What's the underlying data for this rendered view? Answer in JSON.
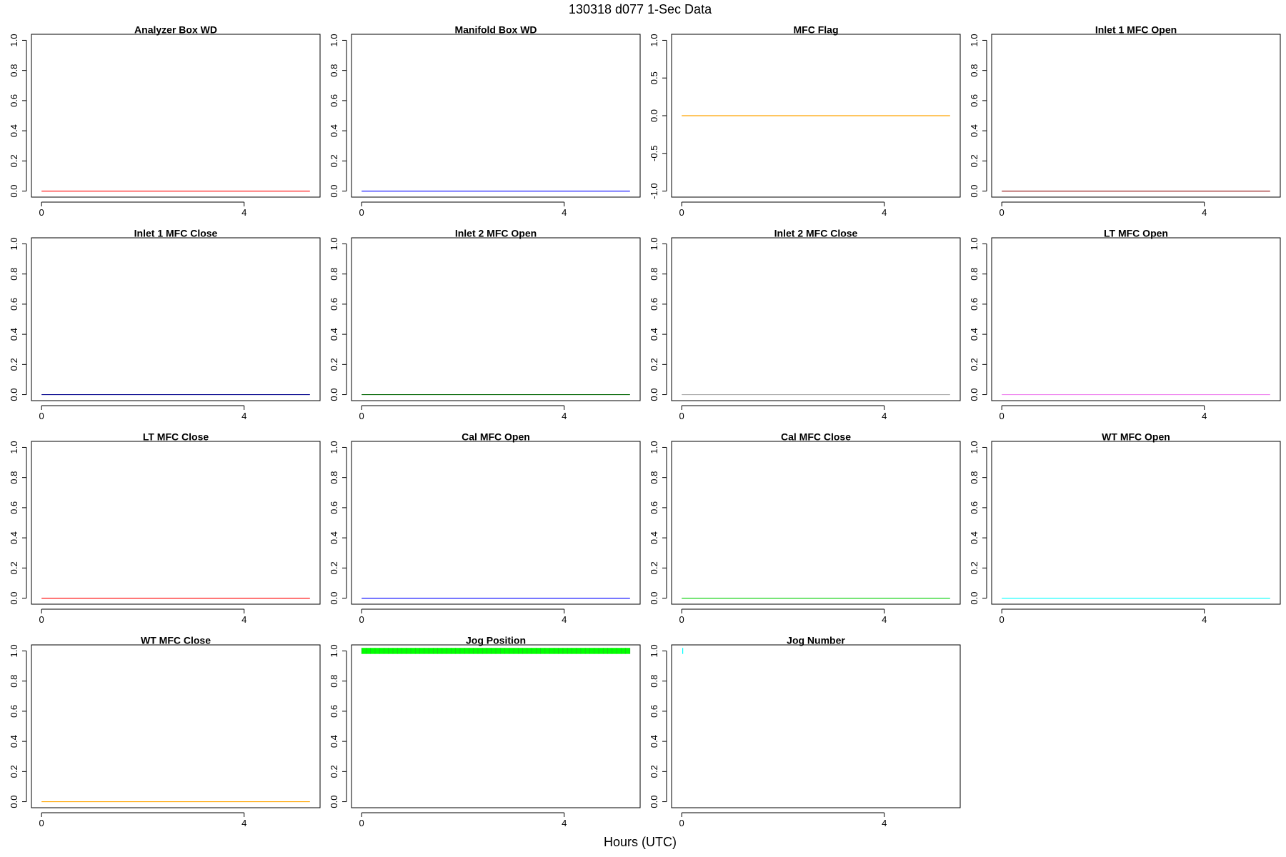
{
  "figure": {
    "title": "130318   d077   1-Sec Data",
    "xlabel": "Hours (UTC)"
  },
  "chart_data": [
    {
      "type": "line",
      "title": "Analyzer Box WD",
      "color": "#ff0000",
      "x": [
        0,
        5.3
      ],
      "y": [
        0,
        0
      ],
      "xlim": [
        -0.2,
        5.5
      ],
      "ylim": [
        -0.04,
        1.04
      ],
      "xticks": [
        0,
        4
      ],
      "yticks": [
        0,
        0.2,
        0.4,
        0.6,
        0.8,
        1
      ]
    },
    {
      "type": "line",
      "title": "Manifold Box WD",
      "color": "#0000ff",
      "x": [
        0,
        5.3
      ],
      "y": [
        0,
        0
      ],
      "xlim": [
        -0.2,
        5.5
      ],
      "ylim": [
        -0.04,
        1.04
      ],
      "xticks": [
        0,
        4
      ],
      "yticks": [
        0,
        0.2,
        0.4,
        0.6,
        0.8,
        1
      ]
    },
    {
      "type": "line",
      "title": "MFC Flag",
      "color": "#ffa500",
      "x": [
        0,
        5.3
      ],
      "y": [
        0,
        0
      ],
      "xlim": [
        -0.2,
        5.5
      ],
      "ylim": [
        -1.08,
        1.08
      ],
      "xticks": [
        0,
        4
      ],
      "yticks": [
        -1,
        -0.5,
        0,
        0.5,
        1
      ]
    },
    {
      "type": "line",
      "title": "Inlet 1 MFC Open",
      "color": "#8b0000",
      "x": [
        0,
        5.3
      ],
      "y": [
        0,
        0
      ],
      "xlim": [
        -0.2,
        5.5
      ],
      "ylim": [
        -0.04,
        1.04
      ],
      "xticks": [
        0,
        4
      ],
      "yticks": [
        0,
        0.2,
        0.4,
        0.6,
        0.8,
        1
      ]
    },
    {
      "type": "line",
      "title": "Inlet 1 MFC Close",
      "color": "#00008b",
      "x": [
        0,
        5.3
      ],
      "y": [
        0,
        0
      ],
      "xlim": [
        -0.2,
        5.5
      ],
      "ylim": [
        -0.04,
        1.04
      ],
      "xticks": [
        0,
        4
      ],
      "yticks": [
        0,
        0.2,
        0.4,
        0.6,
        0.8,
        1
      ]
    },
    {
      "type": "line",
      "title": "Inlet 2 MFC Open",
      "color": "#006400",
      "x": [
        0,
        5.3
      ],
      "y": [
        0,
        0
      ],
      "xlim": [
        -0.2,
        5.5
      ],
      "ylim": [
        -0.04,
        1.04
      ],
      "xticks": [
        0,
        4
      ],
      "yticks": [
        0,
        0.2,
        0.4,
        0.6,
        0.8,
        1
      ]
    },
    {
      "type": "line",
      "title": "Inlet 2 MFC Close",
      "color": "#a9a9a9",
      "x": [
        0,
        5.3
      ],
      "y": [
        0,
        0
      ],
      "xlim": [
        -0.2,
        5.5
      ],
      "ylim": [
        -0.04,
        1.04
      ],
      "xticks": [
        0,
        4
      ],
      "yticks": [
        0,
        0.2,
        0.4,
        0.6,
        0.8,
        1
      ]
    },
    {
      "type": "line",
      "title": "LT MFC Open",
      "color": "#ee82ee",
      "x": [
        0,
        5.3
      ],
      "y": [
        0,
        0
      ],
      "xlim": [
        -0.2,
        5.5
      ],
      "ylim": [
        -0.04,
        1.04
      ],
      "xticks": [
        0,
        4
      ],
      "yticks": [
        0,
        0.2,
        0.4,
        0.6,
        0.8,
        1
      ]
    },
    {
      "type": "line",
      "title": "LT MFC Close",
      "color": "#ff0000",
      "x": [
        0,
        5.3
      ],
      "y": [
        0,
        0
      ],
      "xlim": [
        -0.2,
        5.5
      ],
      "ylim": [
        -0.04,
        1.04
      ],
      "xticks": [
        0,
        4
      ],
      "yticks": [
        0,
        0.2,
        0.4,
        0.6,
        0.8,
        1
      ]
    },
    {
      "type": "line",
      "title": "Cal MFC Open",
      "color": "#0000ff",
      "x": [
        0,
        5.3
      ],
      "y": [
        0,
        0
      ],
      "xlim": [
        -0.2,
        5.5
      ],
      "ylim": [
        -0.04,
        1.04
      ],
      "xticks": [
        0,
        4
      ],
      "yticks": [
        0,
        0.2,
        0.4,
        0.6,
        0.8,
        1
      ]
    },
    {
      "type": "line",
      "title": "Cal MFC Close",
      "color": "#00cd00",
      "x": [
        0,
        5.3
      ],
      "y": [
        0,
        0
      ],
      "xlim": [
        -0.2,
        5.5
      ],
      "ylim": [
        -0.04,
        1.04
      ],
      "xticks": [
        0,
        4
      ],
      "yticks": [
        0,
        0.2,
        0.4,
        0.6,
        0.8,
        1
      ]
    },
    {
      "type": "line",
      "title": "WT MFC Open",
      "color": "#00ffff",
      "x": [
        0,
        5.3
      ],
      "y": [
        0,
        0
      ],
      "xlim": [
        -0.2,
        5.5
      ],
      "ylim": [
        -0.04,
        1.04
      ],
      "xticks": [
        0,
        4
      ],
      "yticks": [
        0,
        0.2,
        0.4,
        0.6,
        0.8,
        1
      ]
    },
    {
      "type": "line",
      "title": "WT MFC Close",
      "color": "#ffa500",
      "x": [
        0,
        5.3
      ],
      "y": [
        0,
        0
      ],
      "xlim": [
        -0.2,
        5.5
      ],
      "ylim": [
        -0.04,
        1.04
      ],
      "xticks": [
        0,
        4
      ],
      "yticks": [
        0,
        0.2,
        0.4,
        0.6,
        0.8,
        1
      ]
    },
    {
      "type": "line",
      "title": "Jog Position",
      "color": "#00ff00",
      "x": [
        0,
        5.3
      ],
      "y": [
        1,
        1
      ],
      "ymin_band": 0.98,
      "ymax_band": 1.02,
      "xlim": [
        -0.2,
        5.5
      ],
      "ylim": [
        -0.04,
        1.04
      ],
      "xticks": [
        0,
        4
      ],
      "yticks": [
        0,
        0.2,
        0.4,
        0.6,
        0.8,
        1
      ]
    },
    {
      "type": "line",
      "title": "Jog Number",
      "color": "#00ffff",
      "x": [
        0.02,
        0.02
      ],
      "y": [
        0.98,
        1.02
      ],
      "xlim": [
        -0.2,
        5.5
      ],
      "ylim": [
        -0.04,
        1.04
      ],
      "xticks": [
        0,
        4
      ],
      "yticks": [
        0,
        0.2,
        0.4,
        0.6,
        0.8,
        1
      ]
    }
  ]
}
